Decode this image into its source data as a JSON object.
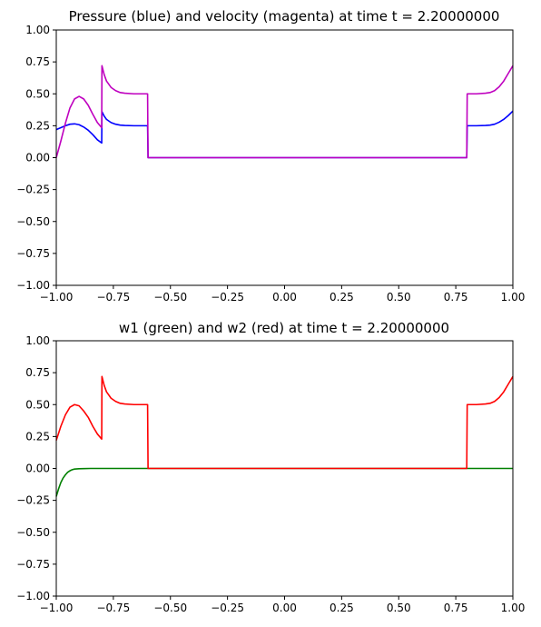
{
  "chart_data": [
    {
      "type": "line",
      "title": "Pressure (blue) and velocity (magenta) at time t =      2.20000000",
      "xlabel": "",
      "ylabel": "",
      "xlim": [
        -1.0,
        1.0
      ],
      "ylim": [
        -1.0,
        1.0
      ],
      "xticks": [
        "−1.00",
        "−0.75",
        "−0.50",
        "−0.25",
        "0.00",
        "0.25",
        "0.50",
        "0.75",
        "1.00"
      ],
      "yticks": [
        "−1.00",
        "−0.75",
        "−0.50",
        "−0.25",
        "0.00",
        "0.25",
        "0.50",
        "0.75",
        "1.00"
      ],
      "grid": false,
      "series": [
        {
          "color": "#0000ff",
          "x": [
            -1.0,
            -0.98,
            -0.96,
            -0.94,
            -0.92,
            -0.9,
            -0.88,
            -0.86,
            -0.84,
            -0.82,
            -0.801,
            -0.8,
            -0.79,
            -0.78,
            -0.76,
            -0.74,
            -0.72,
            -0.7,
            -0.66,
            -0.62,
            -0.6,
            -0.598,
            0.798,
            0.8,
            0.84,
            0.88,
            0.9,
            0.92,
            0.94,
            0.96,
            0.98,
            1.0
          ],
          "y": [
            0.22,
            0.235,
            0.25,
            0.262,
            0.265,
            0.258,
            0.24,
            0.215,
            0.18,
            0.14,
            0.115,
            0.36,
            0.325,
            0.3,
            0.275,
            0.262,
            0.255,
            0.252,
            0.25,
            0.25,
            0.25,
            0.0,
            0.0,
            0.25,
            0.25,
            0.252,
            0.255,
            0.262,
            0.278,
            0.3,
            0.33,
            0.365
          ]
        },
        {
          "color": "#bf00bf",
          "x": [
            -1.0,
            -0.98,
            -0.96,
            -0.94,
            -0.92,
            -0.9,
            -0.88,
            -0.86,
            -0.84,
            -0.82,
            -0.801,
            -0.8,
            -0.79,
            -0.78,
            -0.76,
            -0.74,
            -0.72,
            -0.7,
            -0.66,
            -0.62,
            -0.6,
            -0.598,
            0.798,
            0.8,
            0.84,
            0.88,
            0.9,
            0.92,
            0.94,
            0.96,
            0.98,
            1.0
          ],
          "y": [
            0.0,
            0.13,
            0.27,
            0.39,
            0.46,
            0.48,
            0.46,
            0.41,
            0.34,
            0.275,
            0.235,
            0.72,
            0.65,
            0.6,
            0.55,
            0.525,
            0.51,
            0.505,
            0.5,
            0.5,
            0.5,
            0.0,
            0.0,
            0.5,
            0.5,
            0.505,
            0.51,
            0.525,
            0.555,
            0.6,
            0.66,
            0.72
          ]
        }
      ]
    },
    {
      "type": "line",
      "title": "w1 (green) and w2 (red) at time t =      2.20000000",
      "xlabel": "",
      "ylabel": "",
      "xlim": [
        -1.0,
        1.0
      ],
      "ylim": [
        -1.0,
        1.0
      ],
      "xticks": [
        "−1.00",
        "−0.75",
        "−0.50",
        "−0.25",
        "0.00",
        "0.25",
        "0.50",
        "0.75",
        "1.00"
      ],
      "yticks": [
        "−1.00",
        "−0.75",
        "−0.50",
        "−0.25",
        "0.00",
        "0.25",
        "0.50",
        "0.75",
        "1.00"
      ],
      "grid": false,
      "series": [
        {
          "color": "#008000",
          "x": [
            -1.0,
            -0.99,
            -0.98,
            -0.97,
            -0.96,
            -0.95,
            -0.94,
            -0.93,
            -0.92,
            -0.9,
            -0.88,
            -0.85,
            -0.8,
            0.0,
            1.0
          ],
          "y": [
            -0.22,
            -0.16,
            -0.11,
            -0.075,
            -0.05,
            -0.03,
            -0.018,
            -0.01,
            -0.005,
            -0.002,
            -0.001,
            0.0,
            0.0,
            0.0,
            0.0
          ]
        },
        {
          "color": "#ff0000",
          "x": [
            -1.0,
            -0.98,
            -0.96,
            -0.94,
            -0.92,
            -0.9,
            -0.88,
            -0.86,
            -0.84,
            -0.82,
            -0.801,
            -0.8,
            -0.79,
            -0.78,
            -0.76,
            -0.74,
            -0.72,
            -0.7,
            -0.66,
            -0.62,
            -0.6,
            -0.598,
            0.798,
            0.8,
            0.84,
            0.88,
            0.9,
            0.92,
            0.94,
            0.96,
            0.98,
            1.0
          ],
          "y": [
            0.22,
            0.33,
            0.42,
            0.48,
            0.5,
            0.49,
            0.45,
            0.4,
            0.33,
            0.27,
            0.23,
            0.72,
            0.65,
            0.6,
            0.55,
            0.525,
            0.51,
            0.505,
            0.5,
            0.5,
            0.5,
            0.0,
            0.0,
            0.5,
            0.5,
            0.505,
            0.51,
            0.525,
            0.555,
            0.6,
            0.66,
            0.72
          ]
        }
      ]
    }
  ]
}
